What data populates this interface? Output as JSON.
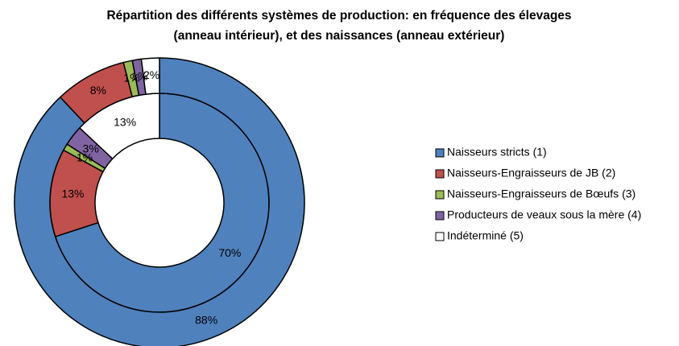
{
  "chart_data": {
    "type": "donut",
    "title": [
      "Répartition des différents systèmes de production: en fréquence des élevages",
      "(anneau intérieur), et des naissances (anneau extérieur)"
    ],
    "categories": [
      "Naisseurs stricts (1)",
      "Naisseurs-Engraisseurs de JB (2)",
      "Naisseurs-Engraisseurs de Bœufs  (3)",
      "Producteurs de veaux sous la mère (4)",
      "Indéterminé (5)"
    ],
    "colors": [
      "#4f81bd",
      "#c0504d",
      "#9bbb59",
      "#8064a2",
      "#ffffff"
    ],
    "series": [
      {
        "values": [
          70,
          13,
          1,
          3,
          13
        ],
        "value_labels": [
          "70%",
          "13%",
          "1%",
          "3%",
          "13%"
        ]
      },
      {
        "values": [
          88,
          8,
          1,
          1,
          2
        ],
        "value_labels": [
          "88%",
          "8%",
          "1%",
          "1%",
          "2%"
        ]
      }
    ],
    "legend": "right"
  }
}
